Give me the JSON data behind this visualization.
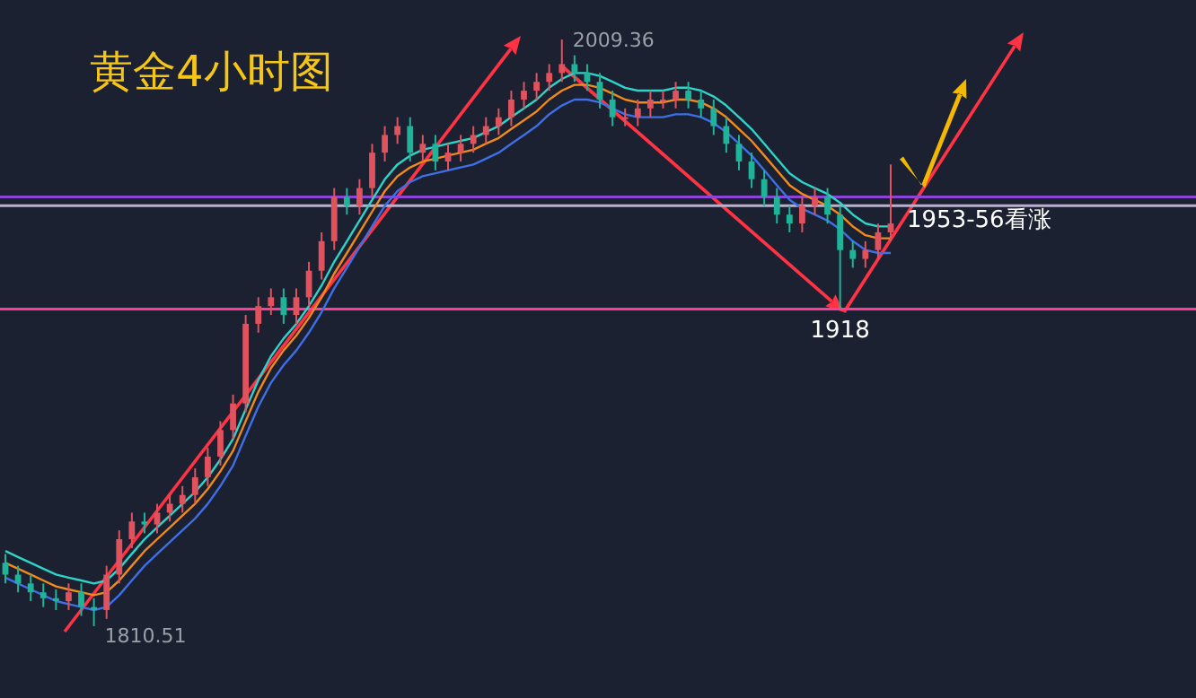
{
  "chart_data": {
    "type": "candlestick",
    "title": "黄金4小时图",
    "categories": [
      null,
      null,
      null,
      null,
      null,
      null,
      null,
      null,
      null,
      null,
      null,
      null,
      null,
      null,
      null,
      null,
      null,
      null,
      null,
      null,
      null,
      null,
      null,
      null,
      null,
      null,
      null,
      null,
      null,
      null,
      null,
      null,
      null,
      null,
      null,
      null,
      null,
      null,
      null,
      null,
      null,
      null,
      null,
      null,
      null,
      null,
      null,
      null,
      null,
      null,
      null,
      null,
      null,
      null,
      null,
      null,
      null,
      null,
      null,
      null,
      null,
      null,
      null,
      null,
      null,
      null,
      null,
      null,
      null,
      null,
      null
    ],
    "ohlc": [
      [
        1832,
        1835,
        1825,
        1828
      ],
      [
        1828,
        1831,
        1822,
        1825
      ],
      [
        1825,
        1828,
        1819,
        1822
      ],
      [
        1822,
        1825,
        1817,
        1820
      ],
      [
        1820,
        1823,
        1816,
        1819
      ],
      [
        1819,
        1825,
        1816,
        1822
      ],
      [
        1822,
        1825,
        1814,
        1817
      ],
      [
        1817,
        1820,
        1810.51,
        1816
      ],
      [
        1816,
        1831,
        1813,
        1828
      ],
      [
        1828,
        1843,
        1825,
        1840
      ],
      [
        1840,
        1849,
        1837,
        1846
      ],
      [
        1846,
        1849,
        1842,
        1845
      ],
      [
        1845,
        1852,
        1842,
        1849
      ],
      [
        1849,
        1855,
        1846,
        1852
      ],
      [
        1852,
        1858,
        1849,
        1855
      ],
      [
        1855,
        1864,
        1852,
        1861
      ],
      [
        1861,
        1871,
        1858,
        1868
      ],
      [
        1868,
        1880,
        1865,
        1877
      ],
      [
        1877,
        1889,
        1874,
        1886
      ],
      [
        1886,
        1916,
        1883,
        1913
      ],
      [
        1913,
        1922,
        1910,
        1919
      ],
      [
        1919,
        1925,
        1916,
        1922
      ],
      [
        1922,
        1925,
        1913,
        1916
      ],
      [
        1916,
        1925,
        1913,
        1922
      ],
      [
        1922,
        1934,
        1919,
        1931
      ],
      [
        1931,
        1944,
        1928,
        1941
      ],
      [
        1941,
        1959,
        1938,
        1956
      ],
      [
        1956,
        1959,
        1950,
        1953
      ],
      [
        1953,
        1962,
        1950,
        1959
      ],
      [
        1959,
        1974,
        1956,
        1971
      ],
      [
        1971,
        1980,
        1968,
        1977
      ],
      [
        1977,
        1983,
        1974,
        1980
      ],
      [
        1980,
        1983,
        1968,
        1971
      ],
      [
        1971,
        1977,
        1968,
        1974
      ],
      [
        1974,
        1977,
        1965,
        1968
      ],
      [
        1968,
        1974,
        1965,
        1971
      ],
      [
        1971,
        1977,
        1968,
        1974
      ],
      [
        1974,
        1980,
        1971,
        1977
      ],
      [
        1977,
        1983,
        1974,
        1980
      ],
      [
        1980,
        1986,
        1977,
        1983
      ],
      [
        1983,
        1992,
        1980,
        1989
      ],
      [
        1989,
        1995,
        1986,
        1992
      ],
      [
        1992,
        1998,
        1989,
        1995
      ],
      [
        1995,
        2001,
        1992,
        1998
      ],
      [
        1998,
        2009.36,
        1995,
        2001
      ],
      [
        2001,
        2004,
        1995,
        1998
      ],
      [
        1998,
        2001,
        1992,
        1995
      ],
      [
        1995,
        1998,
        1986,
        1989
      ],
      [
        1989,
        1992,
        1980,
        1983
      ],
      [
        1983,
        1986,
        1980,
        1983
      ],
      [
        1983,
        1989,
        1980,
        1986
      ],
      [
        1986,
        1992,
        1983,
        1989
      ],
      [
        1989,
        1992,
        1986,
        1989
      ],
      [
        1989,
        1995,
        1986,
        1992
      ],
      [
        1992,
        1995,
        1986,
        1989
      ],
      [
        1989,
        1992,
        1983,
        1986
      ],
      [
        1986,
        1989,
        1977,
        1980
      ],
      [
        1980,
        1983,
        1971,
        1974
      ],
      [
        1974,
        1977,
        1965,
        1968
      ],
      [
        1968,
        1971,
        1959,
        1962
      ],
      [
        1962,
        1965,
        1953,
        1956
      ],
      [
        1956,
        1959,
        1947,
        1950
      ],
      [
        1950,
        1953,
        1944,
        1947
      ],
      [
        1947,
        1956,
        1944,
        1953
      ],
      [
        1953,
        1959,
        1950,
        1956
      ],
      [
        1956,
        1959,
        1947,
        1950
      ],
      [
        1950,
        1953,
        1918,
        1938
      ],
      [
        1938,
        1941,
        1932,
        1935
      ],
      [
        1935,
        1941,
        1932,
        1938
      ],
      [
        1938,
        1947,
        1935,
        1944
      ],
      [
        1944,
        1967,
        1941,
        1947
      ]
    ],
    "series": [
      {
        "type": "line",
        "color": "#2fd3c8",
        "values": [
          1836,
          1834,
          1832,
          1830,
          1828,
          1827,
          1826,
          1825,
          1826,
          1830,
          1835,
          1840,
          1844,
          1848,
          1852,
          1856,
          1861,
          1867,
          1874,
          1884,
          1894,
          1902,
          1908,
          1913,
          1919,
          1926,
          1934,
          1941,
          1948,
          1955,
          1962,
          1967,
          1970,
          1972,
          1973,
          1974,
          1975,
          1976,
          1978,
          1980,
          1983,
          1986,
          1989,
          1993,
          1996,
          1998,
          1998,
          1997,
          1995,
          1993,
          1992,
          1992,
          1992,
          1993,
          1993,
          1992,
          1990,
          1987,
          1983,
          1979,
          1974,
          1969,
          1964,
          1961,
          1959,
          1957,
          1954,
          1950,
          1947,
          1946,
          1946
        ]
      },
      {
        "type": "line",
        "color": "#f08a1c",
        "values": [
          1832,
          1830,
          1828,
          1826,
          1824,
          1823,
          1822,
          1821,
          1822,
          1826,
          1831,
          1836,
          1840,
          1844,
          1848,
          1852,
          1857,
          1863,
          1870,
          1880,
          1890,
          1898,
          1904,
          1909,
          1915,
          1922,
          1930,
          1937,
          1944,
          1951,
          1958,
          1963,
          1966,
          1968,
          1969,
          1970,
          1971,
          1972,
          1974,
          1976,
          1979,
          1982,
          1985,
          1989,
          1992,
          1994,
          1994,
          1993,
          1991,
          1989,
          1988,
          1988,
          1988,
          1989,
          1989,
          1988,
          1986,
          1983,
          1979,
          1975,
          1970,
          1965,
          1960,
          1957,
          1955,
          1953,
          1950,
          1946,
          1943,
          1942,
          1942
        ]
      },
      {
        "type": "line",
        "color": "#3f6fe6",
        "values": [
          1827,
          1825,
          1823,
          1821,
          1819,
          1818,
          1817,
          1816,
          1817,
          1821,
          1826,
          1831,
          1835,
          1839,
          1843,
          1847,
          1852,
          1858,
          1865,
          1875,
          1885,
          1893,
          1899,
          1904,
          1910,
          1917,
          1925,
          1932,
          1939,
          1946,
          1953,
          1958,
          1961,
          1963,
          1964,
          1965,
          1966,
          1967,
          1969,
          1971,
          1974,
          1977,
          1980,
          1984,
          1987,
          1989,
          1989,
          1988,
          1986,
          1984,
          1983,
          1983,
          1983,
          1984,
          1984,
          1983,
          1981,
          1978,
          1974,
          1970,
          1965,
          1960,
          1955,
          1952,
          1950,
          1948,
          1945,
          1941,
          1938,
          1937,
          1937
        ]
      }
    ],
    "ref_lines": [
      {
        "axis": "y",
        "value": 1956,
        "color": "#8b44d6"
      },
      {
        "axis": "y",
        "value": 1953,
        "label": "1953-56看涨",
        "color": "#b8b0cc"
      },
      {
        "axis": "y",
        "value": 1918,
        "label": "1918",
        "color": "#ff3c9a"
      }
    ],
    "annotations": [
      "2009.36",
      "1810.51"
    ]
  }
}
